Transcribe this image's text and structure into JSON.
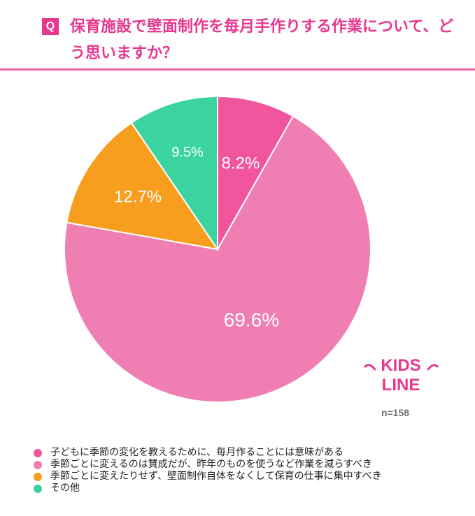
{
  "question": {
    "badge": "Q",
    "text": "保育施設で壁面制作を毎月手作りする作業について、どう思いますか？"
  },
  "logo": {
    "line1": "KIDS",
    "line2": "LINE"
  },
  "sample": "n=158",
  "colors": {
    "accent": "#e8378f",
    "rule": "#ec5fa3"
  },
  "chart_data": {
    "type": "pie",
    "title": "保育施設で壁面制作を毎月手作りする作業について、どう思いますか？",
    "start": "12 o'clock",
    "direction": "clockwise",
    "slices": [
      {
        "label": "子どもに季節の変化を教えるために、毎月作ることには意味がある",
        "value": 8.2,
        "value_label": "8.2%",
        "color": "#f0559e"
      },
      {
        "label": "季節ごとに変えるのは賛成だが、昨年のものを使うなど作業を減らすべき",
        "value": 69.6,
        "value_label": "69.6%",
        "color": "#ef7fb2"
      },
      {
        "label": "季節ごとに変えたりせず、壁面制作自体をなくして保育の仕事に集中すべき",
        "value": 12.7,
        "value_label": "12.7%",
        "color": "#f79e1e"
      },
      {
        "label": "その他",
        "value": 9.5,
        "value_label": "9.5%",
        "color": "#3bd4a1"
      }
    ]
  }
}
